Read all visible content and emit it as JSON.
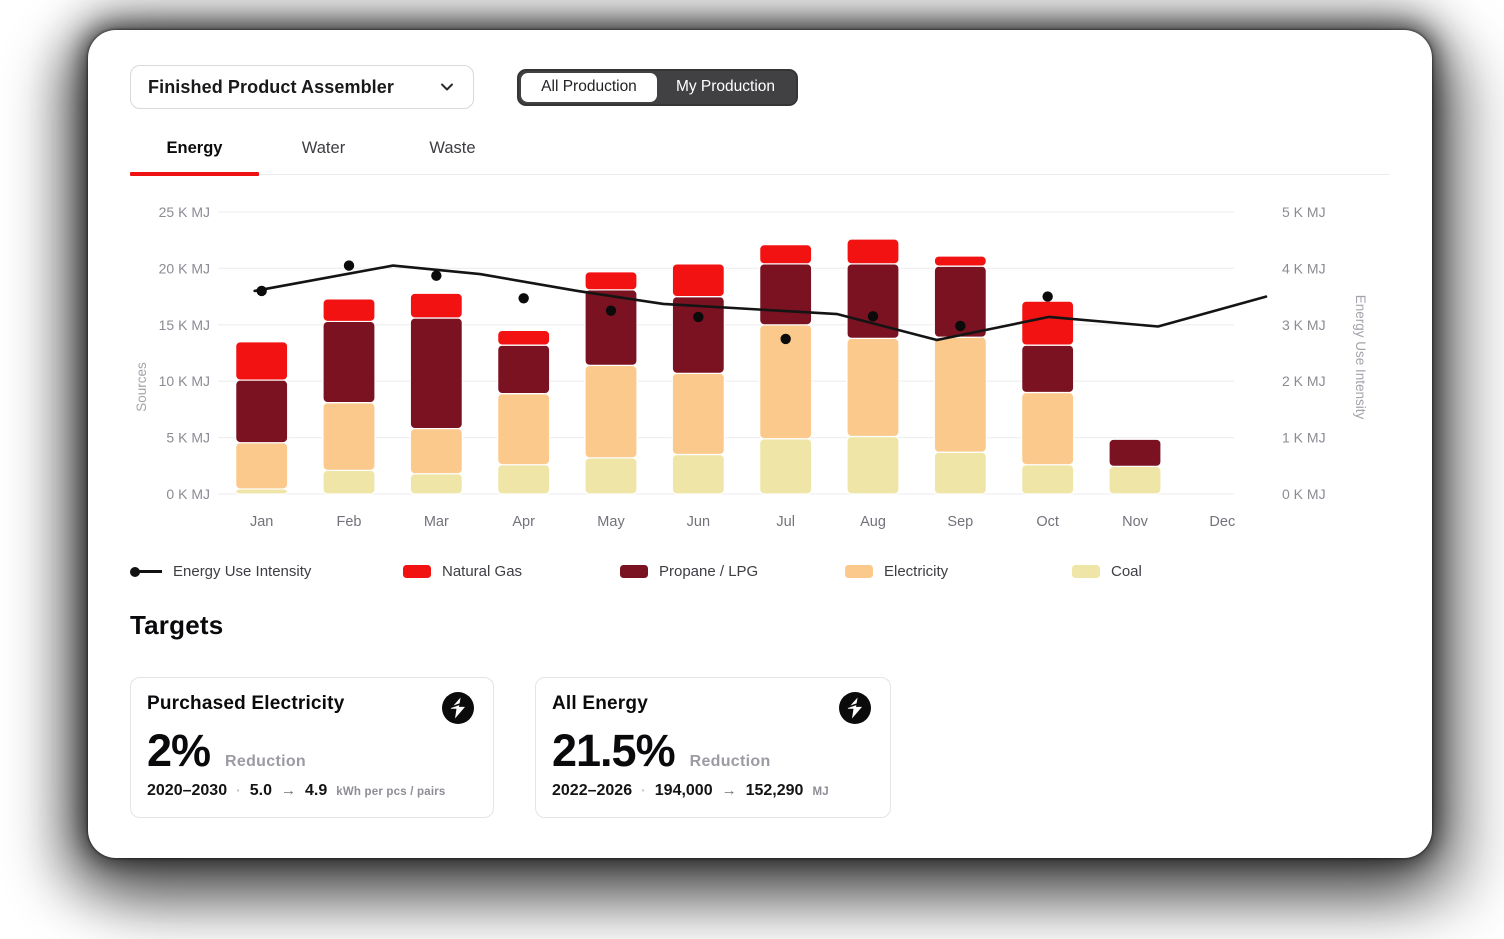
{
  "header": {
    "dropdown": {
      "label": "Finished Product Assembler"
    },
    "toggle": {
      "options": [
        "All Production",
        "My Production"
      ],
      "selected": "My Production"
    }
  },
  "tabs": [
    {
      "label": "Energy",
      "active": true
    },
    {
      "label": "Water",
      "active": false
    },
    {
      "label": "Waste",
      "active": false
    }
  ],
  "chart_data": {
    "type": "bar",
    "stacked": true,
    "grid": true,
    "legend_position": "bottom",
    "categories": [
      "Jan",
      "Feb",
      "Mar",
      "Apr",
      "May",
      "Jun",
      "Jul",
      "Aug",
      "Sep",
      "Oct",
      "Nov",
      "Dec"
    ],
    "series": [
      {
        "name": "Coal",
        "color": "#eee5a7",
        "values": [
          0.45,
          2.1,
          1.8,
          2.6,
          3.2,
          3.5,
          4.9,
          5.1,
          3.7,
          2.6,
          2.45,
          0
        ]
      },
      {
        "name": "Electricity",
        "color": "#fbc98c",
        "values": [
          4.1,
          6.0,
          4.0,
          6.3,
          8.2,
          7.2,
          10.1,
          8.7,
          10.2,
          6.4,
          0,
          0
        ]
      },
      {
        "name": "Propane / LPG",
        "color": "#7b1222",
        "values": [
          5.55,
          7.2,
          9.8,
          4.3,
          6.7,
          6.8,
          5.4,
          6.6,
          6.3,
          4.2,
          2.4,
          0
        ]
      },
      {
        "name": "Natural Gas",
        "color": "#f21212",
        "values": [
          3.4,
          2.0,
          2.2,
          1.3,
          1.6,
          2.9,
          1.7,
          2.2,
          0.9,
          3.9,
          0,
          0
        ]
      }
    ],
    "line": {
      "name": "Energy Use Intensity",
      "color": "#141414",
      "axis": "right",
      "points": [
        [
          0.035,
          3.6
        ],
        [
          0.167,
          4.05
        ],
        [
          0.25,
          3.9
        ],
        [
          0.343,
          3.6
        ],
        [
          0.425,
          3.37
        ],
        [
          0.508,
          3.28
        ],
        [
          0.591,
          3.19
        ],
        [
          0.686,
          2.73
        ],
        [
          0.793,
          3.14
        ],
        [
          0.897,
          2.97
        ],
        [
          1.0,
          3.5
        ]
      ],
      "dots": [
        3.6,
        4.05,
        3.87,
        3.47,
        3.25,
        3.14,
        2.75,
        3.15,
        2.98,
        3.5,
        null,
        null
      ]
    },
    "left_axis": {
      "label": "Sources",
      "unit": "K MJ",
      "max": 25,
      "ticks": [
        "0 K MJ",
        "5 K MJ",
        "10 K MJ",
        "15 K MJ",
        "20 K MJ",
        "25 K MJ"
      ]
    },
    "right_axis": {
      "label": "Energy Use Intensity",
      "unit": "K MJ",
      "max": 5,
      "ticks": [
        "0 K MJ",
        "1 K MJ",
        "2 K MJ",
        "3 K MJ",
        "4 K MJ",
        "5 K MJ"
      ]
    }
  },
  "legend": [
    {
      "label": "Energy Use Intensity",
      "type": "line-dot",
      "color": "#141414"
    },
    {
      "label": "Natural Gas",
      "type": "swatch",
      "color": "#f21212"
    },
    {
      "label": "Propane / LPG",
      "type": "swatch",
      "color": "#7b1222"
    },
    {
      "label": "Electricity",
      "type": "swatch",
      "color": "#fbc98c"
    },
    {
      "label": "Coal",
      "type": "swatch",
      "color": "#eee5a7"
    }
  ],
  "targets": {
    "heading": "Targets",
    "cards": [
      {
        "title": "Purchased Electricity",
        "icon": "bolt-icon",
        "percent": "2%",
        "percent_label": "Reduction",
        "period": "2020–2030",
        "separator": "·",
        "from": "5.0",
        "arrow": "→",
        "to": "4.9",
        "unit": "kWh per pcs / pairs"
      },
      {
        "title": "All Energy",
        "icon": "bolt-icon",
        "percent": "21.5%",
        "percent_label": "Reduction",
        "period": "2022–2026",
        "separator": "·",
        "from": "194,000",
        "arrow": "→",
        "to": "152,290",
        "unit": "MJ"
      }
    ]
  }
}
